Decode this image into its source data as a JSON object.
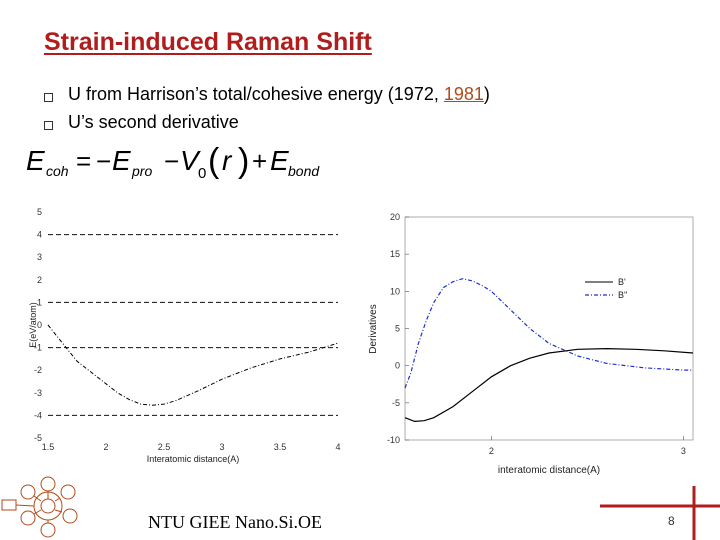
{
  "slide": {
    "title": "Strain-induced Raman Shift",
    "bullets": [
      {
        "pre": "U from Harrison’s total/cohesive energy (1972, ",
        "link": "1981",
        "post": ")"
      },
      {
        "pre": "U’s second derivative",
        "link": "",
        "post": ""
      }
    ],
    "equation": {
      "lhs": "E",
      "lhs_sub": "coh",
      "t1": "E",
      "t1_sub": "pro",
      "t2": "V",
      "t2_sub": "0",
      "t2_arg": "r",
      "t3": "E",
      "t3_sub": "bond"
    },
    "footer": "NTU GIEE Nano.Si.OE",
    "page_number": "8"
  },
  "colors": {
    "title": "#b11d1d",
    "curve_primary": "#000000",
    "curve_secondary": "#1a33cc",
    "link": "#b34a1a"
  },
  "chart_data": [
    {
      "type": "line",
      "xlabel": "Interatomic distance(A)",
      "ylabel": "E(eV/atom)",
      "xlim": [
        1.5,
        4
      ],
      "ylim": [
        -5,
        5
      ],
      "x_ticks": [
        "1.5",
        "2",
        "2.5",
        "3",
        "3.5",
        "4"
      ],
      "y_ticks": [
        "5",
        "4",
        "3",
        "2",
        "1",
        "0",
        "-1",
        "-2",
        "-3",
        "-4",
        "-5"
      ],
      "series": [
        {
          "x": [
            1.5,
            1.75,
            2.0,
            2.1,
            2.2,
            2.3,
            2.4,
            2.5,
            2.6,
            2.8,
            3.0,
            3.25,
            3.5,
            3.75,
            4.0
          ],
          "y": [
            0.0,
            -1.6,
            -2.6,
            -3.0,
            -3.3,
            -3.5,
            -3.55,
            -3.5,
            -3.35,
            -2.9,
            -2.4,
            -1.9,
            -1.5,
            -1.2,
            -0.8
          ]
        }
      ],
      "hlines": [
        4,
        1,
        -1,
        -4
      ]
    },
    {
      "type": "line",
      "xlabel": "interatomic distance(A)",
      "ylabel": "Derivatives",
      "xlim": [
        1.55,
        3.05
      ],
      "ylim": [
        -10,
        20
      ],
      "x_ticks": [
        "2",
        "3"
      ],
      "y_ticks": [
        "20",
        "15",
        "10",
        "5",
        "0",
        "-5",
        "-10"
      ],
      "legend": [
        "B'",
        "B''"
      ],
      "legend_position": "right",
      "series": [
        {
          "name": "B'",
          "x": [
            1.55,
            1.6,
            1.65,
            1.7,
            1.8,
            1.9,
            2.0,
            2.1,
            2.2,
            2.3,
            2.45,
            2.6,
            2.75,
            2.9,
            3.05
          ],
          "y": [
            -7.0,
            -7.5,
            -7.4,
            -7.0,
            -5.5,
            -3.5,
            -1.5,
            0.0,
            1.0,
            1.7,
            2.2,
            2.3,
            2.2,
            2.0,
            1.7
          ]
        },
        {
          "name": "B''",
          "x": [
            1.55,
            1.58,
            1.62,
            1.66,
            1.7,
            1.75,
            1.8,
            1.85,
            1.9,
            1.95,
            2.0,
            2.1,
            2.2,
            2.3,
            2.45,
            2.6,
            2.8,
            3.0,
            3.05
          ],
          "y": [
            -3.0,
            -1.0,
            3.0,
            6.0,
            8.5,
            10.5,
            11.3,
            11.7,
            11.4,
            10.8,
            10.0,
            7.5,
            5.0,
            3.0,
            1.3,
            0.3,
            -0.3,
            -0.6,
            -0.6
          ]
        }
      ]
    }
  ]
}
